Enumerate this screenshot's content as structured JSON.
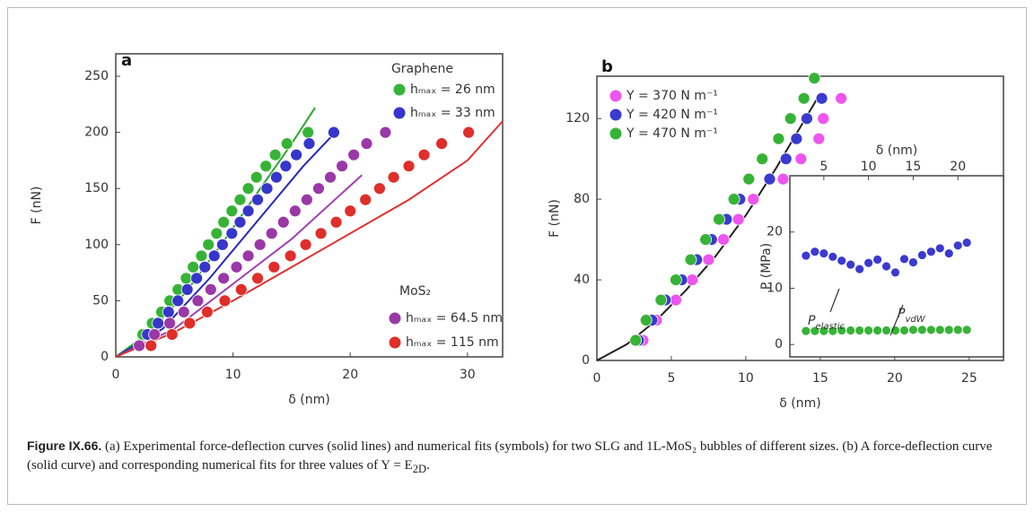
{
  "chart_data": [
    {
      "type": "scatter",
      "panel_label": "a",
      "xlabel": "δ (nm)",
      "ylabel": "F (nN)",
      "xlim": [
        0,
        33
      ],
      "xticks": [
        0,
        10,
        20,
        30
      ],
      "ylim": [
        0,
        270
      ],
      "yticks": [
        0,
        50,
        100,
        150,
        200,
        250
      ],
      "annotations": [
        "Graphene",
        "MoS₂"
      ],
      "series": [
        {
          "name": "hₘₐₓ = 26 nm",
          "color": "#36b336",
          "x": [
            2.3,
            3.1,
            3.9,
            4.6,
            5.3,
            6.0,
            6.6,
            7.3,
            7.9,
            8.6,
            9.2,
            9.9,
            10.6,
            11.3,
            12.0,
            12.8,
            13.6,
            14.6,
            16.4
          ],
          "values": [
            20,
            30,
            40,
            50,
            60,
            70,
            80,
            90,
            100,
            110,
            120,
            130,
            140,
            150,
            160,
            170,
            180,
            190,
            200
          ]
        },
        {
          "name": "hₘₐₓ = 33 nm",
          "color": "#3636cc",
          "x": [
            2.7,
            3.6,
            4.5,
            5.3,
            6.1,
            6.9,
            7.6,
            8.4,
            9.1,
            9.9,
            10.6,
            11.3,
            12.1,
            12.9,
            13.7,
            14.5,
            15.4,
            16.5,
            18.6
          ],
          "values": [
            20,
            30,
            40,
            50,
            60,
            70,
            80,
            90,
            100,
            110,
            120,
            130,
            140,
            150,
            160,
            170,
            180,
            190,
            200
          ]
        },
        {
          "name": "hₘₐₓ = 64.5 nm",
          "color": "#9a38a8",
          "x": [
            2.0,
            3.3,
            4.6,
            5.8,
            7.0,
            8.1,
            9.2,
            10.3,
            11.3,
            12.3,
            13.3,
            14.3,
            15.3,
            16.3,
            17.3,
            18.3,
            19.3,
            20.3,
            21.4,
            23.0
          ],
          "values": [
            10,
            20,
            30,
            40,
            50,
            60,
            70,
            80,
            90,
            100,
            110,
            120,
            130,
            140,
            150,
            160,
            170,
            180,
            190,
            200
          ]
        },
        {
          "name": "hₘₐₓ = 115 nm",
          "color": "#e02e2a",
          "x": [
            3.0,
            4.8,
            6.3,
            7.8,
            9.3,
            10.7,
            12.1,
            13.5,
            14.9,
            16.2,
            17.5,
            18.8,
            20.0,
            21.3,
            22.5,
            23.7,
            25.0,
            26.3,
            27.8,
            30.1
          ],
          "values": [
            10,
            20,
            30,
            40,
            50,
            60,
            70,
            80,
            90,
            100,
            110,
            120,
            130,
            140,
            150,
            160,
            170,
            180,
            190,
            200
          ]
        }
      ],
      "fits": [
        {
          "color": "#2aa82a",
          "x": [
            0,
            3,
            6,
            9,
            12,
            15,
            17
          ],
          "values": [
            0,
            23,
            58,
            100,
            145,
            190,
            222
          ]
        },
        {
          "color": "#2828bb",
          "x": [
            0,
            4,
            8,
            12,
            16,
            19
          ],
          "values": [
            0,
            25,
            70,
            120,
            170,
            203
          ]
        },
        {
          "color": "#a040b0",
          "x": [
            0,
            5,
            10,
            15,
            21
          ],
          "values": [
            0,
            25,
            65,
            105,
            162
          ]
        },
        {
          "color": "#e03030",
          "x": [
            0,
            5,
            10,
            15,
            20,
            25,
            30,
            33
          ],
          "values": [
            0,
            22,
            50,
            80,
            110,
            140,
            175,
            210
          ]
        }
      ]
    },
    {
      "type": "scatter",
      "panel_label": "b",
      "xlabel": "δ (nm)",
      "ylabel": "F (nN)",
      "xlim": [
        0,
        27.3
      ],
      "xticks": [
        0,
        5,
        10,
        15,
        20,
        25
      ],
      "ylim": [
        0,
        141
      ],
      "yticks": [
        0,
        40,
        80,
        120
      ],
      "series": [
        {
          "name": "Y = 370 N m⁻¹",
          "color": "#ee55ee",
          "x": [
            3.1,
            4.0,
            5.3,
            6.4,
            7.5,
            8.5,
            9.5,
            10.5,
            12.5,
            13.7,
            14.9,
            15.2,
            16.4
          ],
          "values": [
            10,
            20,
            30,
            40,
            50,
            60,
            70,
            80,
            90,
            100,
            110,
            120,
            130
          ]
        },
        {
          "name": "Y = 420 N m⁻¹",
          "color": "#3a3ad0",
          "x": [
            2.8,
            3.7,
            4.6,
            5.7,
            6.7,
            7.7,
            8.7,
            9.6,
            11.6,
            12.7,
            13.4,
            14.1,
            15.1
          ],
          "values": [
            10,
            20,
            30,
            40,
            50,
            60,
            70,
            80,
            90,
            100,
            110,
            120,
            130
          ]
        },
        {
          "name": "Y = 470 N m⁻¹",
          "color": "#36b336",
          "x": [
            2.6,
            3.3,
            4.3,
            5.3,
            6.3,
            7.3,
            8.2,
            9.2,
            10.2,
            11.1,
            12.2,
            13.0,
            13.9,
            14.6
          ],
          "values": [
            10,
            20,
            30,
            40,
            50,
            60,
            70,
            80,
            90,
            100,
            110,
            120,
            130,
            140
          ]
        }
      ],
      "fits": [
        {
          "color": "#222222",
          "x": [
            0,
            2,
            4,
            6,
            8,
            10,
            12,
            14,
            14.8
          ],
          "values": [
            0,
            8,
            20,
            35,
            52,
            72,
            95,
            120,
            130
          ]
        }
      ]
    },
    {
      "type": "scatter",
      "xlabel": "δ (nm)",
      "ylabel": "P (MPa)",
      "xaxis": "top",
      "xlim": [
        1.2,
        25.1
      ],
      "xticks": [
        5,
        10,
        15,
        20
      ],
      "ylim": [
        -2.2,
        30
      ],
      "yticks": [
        0,
        10,
        20
      ],
      "annotations": [
        {
          "text": "P",
          "sub": "elastic"
        },
        {
          "text": "P",
          "sub": "vdW"
        }
      ],
      "series": [
        {
          "color": "#3a3ad0",
          "x": [
            3,
            4,
            5,
            6,
            7,
            8,
            9,
            10,
            11,
            12,
            13,
            14,
            15,
            16,
            17,
            18,
            19,
            20,
            21
          ],
          "values": [
            15.8,
            16.5,
            16.2,
            15.6,
            14.9,
            14.2,
            13.4,
            14.5,
            15.1,
            13.9,
            12.8,
            15.2,
            14.6,
            15.9,
            16.5,
            17.1,
            16.2,
            17.6,
            18.1
          ]
        },
        {
          "color": "#36b336",
          "x": [
            3,
            4,
            5,
            6,
            7,
            8,
            9,
            10,
            11,
            12,
            13,
            14,
            15,
            16,
            17,
            18,
            19,
            20,
            21
          ],
          "values": [
            2.4,
            2.4,
            2.4,
            2.4,
            2.5,
            2.5,
            2.5,
            2.5,
            2.5,
            2.5,
            2.5,
            2.5,
            2.6,
            2.6,
            2.6,
            2.6,
            2.6,
            2.6,
            2.6
          ]
        }
      ]
    }
  ],
  "caption": {
    "label": "Figure IX.66.",
    "text": "(a) Experimental force-deflection curves (solid lines) and numerical fits (symbols) for two SLG and 1L-MoS₂ bubbles of different sizes. (b) A force-deflection curve (solid curve) and corresponding numerical fits for three values of Y = E",
    "subscript": "2D",
    "end": "."
  }
}
